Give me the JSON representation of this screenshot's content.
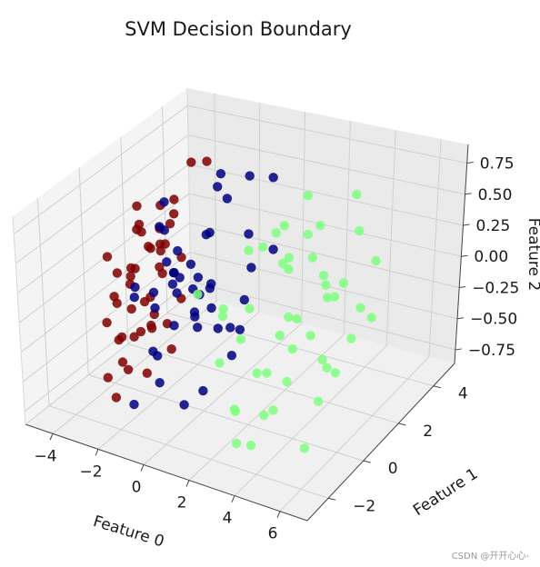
{
  "chart_data": {
    "type": "scatter",
    "title": "SVM Decision Boundary",
    "xlabel": "Feature 0",
    "ylabel": "Feature 1",
    "zlabel": "Feature 2",
    "x_ticks": [
      "−4",
      "−2",
      "0",
      "2",
      "4",
      "6"
    ],
    "y_ticks": [
      "−2",
      "0",
      "2",
      "4"
    ],
    "z_ticks": [
      "0.75",
      "0.50",
      "0.25",
      "0.00",
      "−0.25",
      "−0.50",
      "−0.75"
    ],
    "grid": true,
    "colors": {
      "class_0": "#7f0000",
      "class_1": "#00007f",
      "class_2": "#7fff7f"
    },
    "series": [
      {
        "values": [
          [
            -2.9,
            -0.3,
            0.05
          ],
          [
            -3.2,
            0.1,
            0.12
          ],
          [
            -2.6,
            -0.6,
            -0.1
          ],
          [
            -3.0,
            0.5,
            -0.2
          ],
          [
            -2.4,
            0.2,
            0.3
          ],
          [
            -2.8,
            -0.9,
            -0.3
          ],
          [
            -3.5,
            0.4,
            0.0
          ],
          [
            -2.2,
            -0.1,
            -0.05
          ],
          [
            -2.5,
            0.8,
            0.2
          ],
          [
            -3.3,
            -0.5,
            -0.4
          ],
          [
            -2.0,
            0.3,
            0.1
          ],
          [
            -2.7,
            1.0,
            0.35
          ],
          [
            -3.6,
            -0.2,
            -0.15
          ],
          [
            -2.3,
            -0.7,
            0.25
          ],
          [
            -3.1,
            0.9,
            -0.45
          ],
          [
            -1.9,
            -0.4,
            -0.25
          ],
          [
            -2.6,
            0.0,
            0.45
          ],
          [
            -3.4,
            1.2,
            0.15
          ],
          [
            -2.1,
            0.6,
            -0.35
          ],
          [
            -2.9,
            -1.1,
            0.05
          ],
          [
            -3.7,
            0.7,
            -0.55
          ],
          [
            -2.4,
            1.4,
            0.55
          ],
          [
            -1.8,
            0.0,
            0.38
          ],
          [
            -3.0,
            -0.8,
            0.2
          ],
          [
            -2.2,
            0.9,
            -0.6
          ],
          [
            -1.6,
            -0.6,
            -0.1
          ],
          [
            -3.4,
            -1.0,
            -0.65
          ],
          [
            -2.6,
            1.6,
            0.4
          ],
          [
            -3.8,
            0.2,
            -0.7
          ],
          [
            -1.9,
            1.1,
            -0.2
          ],
          [
            -2.3,
            -1.2,
            -0.5
          ],
          [
            -1.7,
            0.4,
            0.5
          ],
          [
            -3.2,
            1.5,
            -0.05
          ],
          [
            -2.0,
            -0.9,
            0.6
          ],
          [
            -1.5,
            0.7,
            0.2
          ],
          [
            -3.5,
            -0.7,
            0.3
          ],
          [
            -2.8,
            0.3,
            -0.75
          ],
          [
            -1.4,
            -0.2,
            0.42
          ],
          [
            -2.5,
            -0.3,
            0.7
          ],
          [
            -3.9,
            -0.4,
            -0.3
          ],
          [
            -1.8,
            1.6,
            0.85
          ],
          [
            -1.3,
            1.8,
            0.85
          ],
          [
            -2.7,
            -1.4,
            -0.72
          ],
          [
            -1.6,
            -1.3,
            -0.15
          ],
          [
            -2.2,
            0.5,
            0.62
          ],
          [
            -3.6,
            1.0,
            0.35
          ]
        ]
      },
      {
        "values": [
          [
            -1.5,
            0.6,
            0.05
          ],
          [
            -1.2,
            0.1,
            0.0
          ],
          [
            -0.9,
            0.9,
            -0.1
          ],
          [
            -1.8,
            0.3,
            0.2
          ],
          [
            -1.0,
            -0.3,
            -0.2
          ],
          [
            -0.6,
            0.5,
            0.1
          ],
          [
            -1.4,
            1.2,
            -0.3
          ],
          [
            -0.8,
            -0.5,
            0.25
          ],
          [
            -2.0,
            0.8,
            -0.05
          ],
          [
            -0.4,
            0.2,
            -0.25
          ],
          [
            -1.1,
            1.5,
            0.3
          ],
          [
            -1.7,
            -0.6,
            -0.4
          ],
          [
            -0.5,
            1.0,
            0.4
          ],
          [
            -1.3,
            -0.9,
            0.0
          ],
          [
            -0.2,
            0.7,
            -0.15
          ],
          [
            -2.2,
            1.3,
            0.15
          ],
          [
            -0.7,
            1.6,
            -0.45
          ],
          [
            -1.6,
            0.0,
            0.5
          ],
          [
            0.0,
            0.4,
            0.05
          ],
          [
            -1.0,
            -1.1,
            -0.55
          ],
          [
            -0.3,
            -0.2,
            0.3
          ],
          [
            -1.9,
            1.7,
            -0.2
          ],
          [
            0.2,
            1.2,
            -0.35
          ],
          [
            -2.4,
            0.4,
            -0.6
          ],
          [
            -0.6,
            2.0,
            0.55
          ],
          [
            0.4,
            0.0,
            0.15
          ],
          [
            -1.2,
            2.2,
            0.6
          ],
          [
            -2.6,
            -0.4,
            0.05
          ],
          [
            0.6,
            0.8,
            -0.5
          ],
          [
            -0.9,
            -1.4,
            0.2
          ],
          [
            0.8,
            1.6,
            0.1
          ],
          [
            -2.8,
            1.1,
            0.35
          ],
          [
            -0.1,
            -0.9,
            -0.7
          ],
          [
            0.3,
            2.1,
            0.75
          ],
          [
            0.9,
            2.6,
            0.7
          ],
          [
            -3.0,
            0.0,
            -0.1
          ],
          [
            0.5,
            -0.6,
            -0.6
          ],
          [
            1.2,
            1.0,
            0.45
          ],
          [
            -1.4,
            2.6,
            0.65
          ],
          [
            -0.2,
            2.4,
            -0.3
          ],
          [
            1.4,
            0.3,
            -0.2
          ],
          [
            0.1,
            -1.5,
            0.4
          ],
          [
            -2.0,
            -1.3,
            -0.75
          ],
          [
            1.6,
            1.8,
            0.25
          ],
          [
            0.7,
            -1.2,
            0.05
          ],
          [
            -3.2,
            1.8,
            0.45
          ]
        ]
      },
      {
        "values": [
          [
            2.5,
            -0.5,
            0.1
          ],
          [
            3.0,
            0.5,
            -0.2
          ],
          [
            2.2,
            -1.5,
            0.2
          ],
          [
            3.5,
            -0.8,
            -0.3
          ],
          [
            2.8,
            1.2,
            0.3
          ],
          [
            4.0,
            0.2,
            0.0
          ],
          [
            2.4,
            0.0,
            -0.45
          ],
          [
            3.2,
            -1.8,
            0.05
          ],
          [
            4.5,
            1.0,
            0.25
          ],
          [
            2.0,
            0.8,
            0.4
          ],
          [
            3.7,
            -1.2,
            -0.55
          ],
          [
            2.6,
            -2.2,
            -0.1
          ],
          [
            4.2,
            -0.5,
            0.45
          ],
          [
            3.3,
            1.8,
            -0.35
          ],
          [
            4.8,
            -1.0,
            -0.05
          ],
          [
            2.9,
            -1.0,
            0.6
          ],
          [
            5.0,
            0.6,
            0.15
          ],
          [
            3.9,
            1.5,
            0.55
          ],
          [
            2.3,
            1.8,
            -0.25
          ],
          [
            4.6,
            -1.8,
            -0.4
          ],
          [
            3.6,
            0.0,
            0.7
          ],
          [
            5.3,
            -0.2,
            -0.5
          ],
          [
            2.7,
            2.3,
            0.35
          ],
          [
            4.4,
            2.2,
            0.05
          ],
          [
            3.1,
            -2.6,
            0.3
          ],
          [
            5.6,
            1.2,
            -0.2
          ],
          [
            4.1,
            -2.4,
            -0.6
          ],
          [
            2.1,
            -0.8,
            -0.65
          ],
          [
            5.2,
            2.0,
            0.5
          ],
          [
            3.4,
            2.6,
            -0.7
          ],
          [
            5.8,
            0.0,
            0.25
          ],
          [
            4.7,
            -1.4,
            0.6
          ],
          [
            2.5,
            2.8,
            0.1
          ],
          [
            3.8,
            -2.9,
            -0.3
          ],
          [
            5.5,
            -1.2,
            -0.7
          ],
          [
            4.3,
            2.9,
            0.65
          ],
          [
            6.0,
            1.8,
            -0.1
          ],
          [
            3.0,
            0.9,
            -0.6
          ],
          [
            5.9,
            -0.6,
            0.4
          ],
          [
            4.9,
            0.5,
            -0.3
          ],
          [
            2.2,
            -2.8,
            0.45
          ],
          [
            3.6,
            1.2,
            0.8
          ],
          [
            5.4,
            2.7,
            0.2
          ],
          [
            4.0,
            -0.9,
            0.75
          ],
          [
            6.3,
            0.8,
            0.1
          ],
          [
            2.8,
            -1.6,
            -0.75
          ],
          [
            4.6,
            1.6,
            -0.55
          ]
        ]
      }
    ]
  },
  "footer": {
    "watermark": "CSDN @开开心心-"
  }
}
